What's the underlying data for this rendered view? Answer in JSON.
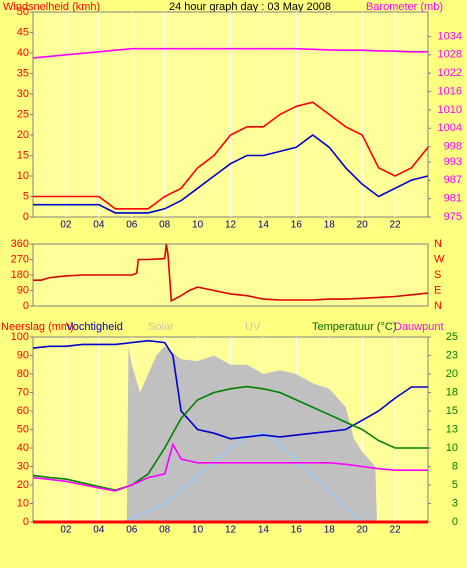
{
  "chart_data": [
    {
      "type": "line",
      "title": "24 hour graph day : 03 May 2008",
      "ylabel": "Windsnelheid (kmh)",
      "y2label": "Barometer (mb)",
      "x": [
        0,
        1,
        2,
        3,
        4,
        5,
        6,
        7,
        8,
        9,
        10,
        11,
        12,
        13,
        14,
        15,
        16,
        17,
        18,
        19,
        20,
        21,
        22,
        23,
        24
      ],
      "series": [
        {
          "color": "#ff0000",
          "values": [
            5,
            5,
            5,
            5,
            5,
            2,
            2,
            2,
            5,
            7,
            12,
            15,
            20,
            22,
            22,
            25,
            27,
            28,
            25,
            22,
            20,
            12,
            10,
            12,
            17
          ]
        },
        {
          "color": "#0000cc",
          "values": [
            3,
            3,
            3,
            3,
            3,
            1,
            1,
            1,
            2,
            4,
            7,
            10,
            13,
            15,
            15,
            16,
            17,
            20,
            17,
            12,
            8,
            5,
            7,
            9,
            10
          ]
        },
        {
          "color": "#ff00ff",
          "axis": "y2",
          "values": [
            1027,
            1027.5,
            1028,
            1028.5,
            1029,
            1029.5,
            1030,
            1030,
            1030,
            1030,
            1030,
            1030,
            1030,
            1030,
            1030,
            1030,
            1030,
            1029.8,
            1029.6,
            1029.5,
            1029.5,
            1029.3,
            1029.2,
            1029,
            1029
          ]
        }
      ],
      "xlim": [
        0,
        24
      ],
      "xticks": [
        {
          "value": 2,
          "label": "02"
        },
        {
          "value": 4,
          "label": "04"
        },
        {
          "value": 6,
          "label": "06"
        },
        {
          "value": 8,
          "label": "08"
        },
        10,
        12,
        14,
        16,
        18,
        20,
        22
      ],
      "ylim": [
        0,
        50
      ],
      "yticks": [
        0,
        5,
        10,
        15,
        20,
        25,
        30,
        35,
        40,
        45,
        50
      ],
      "y2lim": [
        975,
        1042
      ],
      "y2ticks": [
        975,
        981,
        987,
        993,
        998,
        1004,
        1010,
        1016,
        1022,
        1028,
        1034
      ]
    },
    {
      "type": "line",
      "x": [
        0,
        0.5,
        1,
        2,
        3,
        4,
        5,
        6,
        6.3,
        6.4,
        7,
        8,
        8.1,
        8.2,
        8.4,
        9,
        9.5,
        10,
        11,
        12,
        13,
        14,
        15,
        16,
        17,
        18,
        19,
        20,
        21,
        22,
        23,
        24
      ],
      "series": [
        {
          "color": "#dd0000",
          "values": [
            150,
            150,
            165,
            175,
            180,
            180,
            180,
            180,
            190,
            270,
            270,
            275,
            360,
            300,
            30,
            60,
            90,
            110,
            90,
            70,
            60,
            40,
            35,
            35,
            35,
            40,
            40,
            45,
            50,
            55,
            65,
            75
          ]
        }
      ],
      "xlim": [
        0,
        24
      ],
      "ylim": [
        0,
        360
      ],
      "yticks": [
        0,
        90,
        180,
        270,
        360
      ],
      "compass": [
        "N",
        "E",
        "S",
        "W",
        "N"
      ]
    },
    {
      "type": "line",
      "series": [
        {
          "name": "Solar",
          "color": "#c0c0c0",
          "area": true,
          "x": [
            0,
            5.7,
            5.8,
            6,
            6.5,
            7,
            7.5,
            8,
            9,
            10,
            11,
            12,
            13,
            14,
            15,
            16,
            17,
            18,
            19,
            19.5,
            20,
            20.8,
            20.9,
            24
          ],
          "values": [
            0,
            0,
            95,
            85,
            70,
            80,
            90,
            95,
            88,
            87,
            90,
            85,
            85,
            80,
            82,
            80,
            75,
            72,
            62,
            45,
            38,
            30,
            0,
            0
          ]
        },
        {
          "name": "UV",
          "color": "#99ccff",
          "x": [
            0,
            5.5,
            8,
            10,
            12,
            13,
            14,
            15,
            17,
            19,
            20,
            24
          ],
          "values": [
            0,
            0,
            10,
            25,
            40,
            47,
            48,
            42,
            25,
            8,
            0,
            0
          ]
        },
        {
          "name": "Neerslag (mm)",
          "color": "#ff0000",
          "x": [
            0,
            24
          ],
          "values": [
            0,
            0
          ]
        },
        {
          "name": "Vochtigheid",
          "color": "#0000cc",
          "x": [
            0,
            1,
            2,
            3,
            4,
            5,
            6,
            7,
            8,
            8.5,
            9,
            10,
            11,
            12,
            13,
            14,
            15,
            16,
            17,
            18,
            19,
            20,
            21,
            22,
            23,
            24
          ],
          "values": [
            94,
            95,
            95,
            96,
            96,
            96,
            97,
            98,
            97,
            90,
            60,
            50,
            48,
            45,
            46,
            47,
            46,
            47,
            48,
            49,
            50,
            55,
            60,
            67,
            73,
            73
          ]
        },
        {
          "name": "Temperatuur (°C)",
          "color": "#008000",
          "axis": "y2",
          "x": [
            0,
            1,
            2,
            3,
            4,
            5,
            6,
            7,
            8,
            9,
            10,
            11,
            12,
            13,
            14,
            15,
            16,
            17,
            18,
            19,
            20,
            21,
            22,
            23,
            24
          ],
          "values": [
            6.3,
            6,
            5.8,
            5.3,
            4.8,
            4.3,
            5,
            6.5,
            10,
            14,
            16.5,
            17.5,
            18,
            18.3,
            18,
            17.5,
            16.5,
            15.5,
            14.5,
            13.5,
            12.5,
            11,
            10,
            10,
            10
          ]
        },
        {
          "name": "Dauwpunt",
          "color": "#ff00ff",
          "axis": "y2",
          "x": [
            0,
            2,
            4,
            5,
            6,
            7,
            8,
            8.5,
            9,
            10,
            11,
            12,
            13,
            14,
            15,
            16,
            17,
            18,
            19,
            20,
            21,
            22,
            23,
            24
          ],
          "values": [
            6,
            5.5,
            4.6,
            4.2,
            5,
            6,
            6.5,
            10.5,
            8.5,
            8,
            8,
            8,
            8,
            8,
            8,
            8,
            8,
            8,
            7.8,
            7.5,
            7.2,
            7,
            7,
            7
          ]
        }
      ],
      "xlim": [
        0,
        24
      ],
      "xticks": [
        {
          "value": 2,
          "label": "02"
        },
        {
          "value": 4,
          "label": "04"
        },
        {
          "value": 6,
          "label": "06"
        },
        {
          "value": 8,
          "label": "08"
        },
        10,
        12,
        14,
        16,
        18,
        20,
        22
      ],
      "ylim": [
        0,
        100
      ],
      "yticks": [
        0,
        10,
        20,
        30,
        40,
        50,
        60,
        70,
        80,
        90,
        100
      ],
      "y2lim": [
        0,
        25
      ],
      "y2ticks": [
        0,
        {
          "value": 2.5,
          "label": "3"
        },
        5,
        {
          "value": 7.5,
          "label": "8"
        },
        10,
        {
          "value": 12.5,
          "label": "13"
        },
        15,
        {
          "value": 17.5,
          "label": "18"
        },
        20,
        {
          "value": 22.5,
          "label": "23"
        },
        25
      ]
    }
  ]
}
